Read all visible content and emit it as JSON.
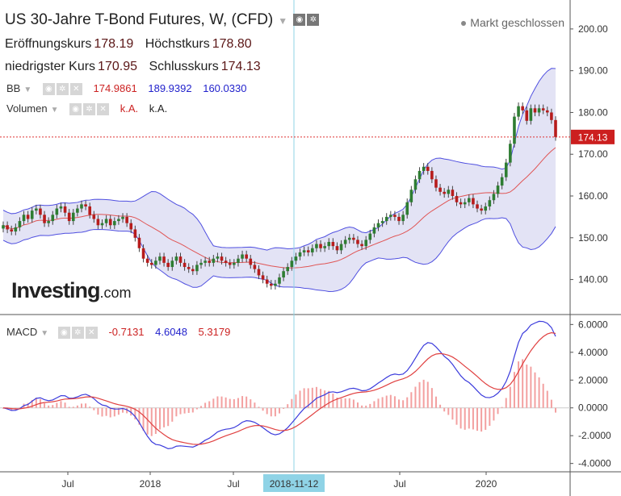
{
  "header": {
    "title": "US 30-Jahre T-Bond Futures, W, (CFD)",
    "market_status": "Markt geschlossen",
    "ohlc": {
      "open_label": "Eröffnungskurs",
      "open": "178.19",
      "high_label": "Höchstkurs",
      "high": "178.80",
      "low_label": "niedrigster Kurs",
      "low": "170.95",
      "close_label": "Schlusskurs",
      "close": "174.13"
    }
  },
  "indicators": {
    "bb": {
      "label": "BB",
      "v1": "174.9861",
      "v2": "189.9392",
      "v3": "160.0330"
    },
    "volume": {
      "label": "Volumen",
      "v1": "k.A.",
      "v2": "k.A."
    },
    "macd": {
      "label": "MACD",
      "v1": "-0.7131",
      "v2": "4.6048",
      "v3": "5.3179"
    }
  },
  "logo": {
    "main": "Investing",
    "suffix": ".com"
  },
  "price_tag": "174.13",
  "colors": {
    "up": "#2e7d32",
    "down": "#b71c1c",
    "band_fill": "#d9d9f2",
    "band_line": "#4f4fe0",
    "ma": "#e05555",
    "macd": "#3b3bdc",
    "signal": "#e04040"
  },
  "chart_data": {
    "type": "candlestick",
    "price_axis": {
      "ticks": [
        "140.00",
        "150.00",
        "160.00",
        "170.00",
        "180.00",
        "190.00",
        "200.00"
      ],
      "range": [
        132,
        205
      ]
    },
    "macd_axis": {
      "ticks": [
        "-4.0000",
        "-2.0000",
        "0.0000",
        "2.0000",
        "4.0000",
        "6.0000"
      ],
      "range": [
        -4.6,
        6.6
      ]
    },
    "time_axis": {
      "ticks": [
        "Jul",
        "2018",
        "Jul",
        "2018-11-12",
        "Jul",
        "2020"
      ],
      "highlighted": "2018-11-12"
    },
    "price_series_weekly_close": [
      153.0,
      152.0,
      151.5,
      152.5,
      154.0,
      155.5,
      154.5,
      156.5,
      157.0,
      155.5,
      153.5,
      154.0,
      155.5,
      157.0,
      157.5,
      156.0,
      154.0,
      156.0,
      157.0,
      158.0,
      157.5,
      155.5,
      154.5,
      153.0,
      153.5,
      154.5,
      153.0,
      154.0,
      154.5,
      155.0,
      153.5,
      152.0,
      150.0,
      147.5,
      145.0,
      144.0,
      143.5,
      144.5,
      145.5,
      144.0,
      143.0,
      144.5,
      145.5,
      144.0,
      143.0,
      142.5,
      142.0,
      143.5,
      144.0,
      144.5,
      144.0,
      145.0,
      145.5,
      144.5,
      144.0,
      143.5,
      144.0,
      145.0,
      146.0,
      145.0,
      143.5,
      142.5,
      141.0,
      140.0,
      139.0,
      138.5,
      139.0,
      140.5,
      142.0,
      143.0,
      144.5,
      145.5,
      146.5,
      147.0,
      146.5,
      147.5,
      148.5,
      147.5,
      148.0,
      149.0,
      148.0,
      147.0,
      148.5,
      149.5,
      150.0,
      149.5,
      148.5,
      148.0,
      149.5,
      151.0,
      152.5,
      153.5,
      154.0,
      155.0,
      155.5,
      155.0,
      154.0,
      155.5,
      158.5,
      161.5,
      164.0,
      166.0,
      167.0,
      166.0,
      164.0,
      162.0,
      161.0,
      160.5,
      161.5,
      160.0,
      158.5,
      158.0,
      158.5,
      159.5,
      158.0,
      157.0,
      156.5,
      157.5,
      159.0,
      160.5,
      162.5,
      164.5,
      168.0,
      172.5,
      179.0,
      181.5,
      180.5,
      178.0,
      181.0,
      180.0,
      181.0,
      180.5,
      180.0,
      178.19,
      174.13
    ],
    "macd_histogram_hint": "bars around zero line, red/pink",
    "series": [
      {
        "name": "MACD",
        "values": []
      },
      {
        "name": "Signal",
        "values": []
      }
    ]
  }
}
